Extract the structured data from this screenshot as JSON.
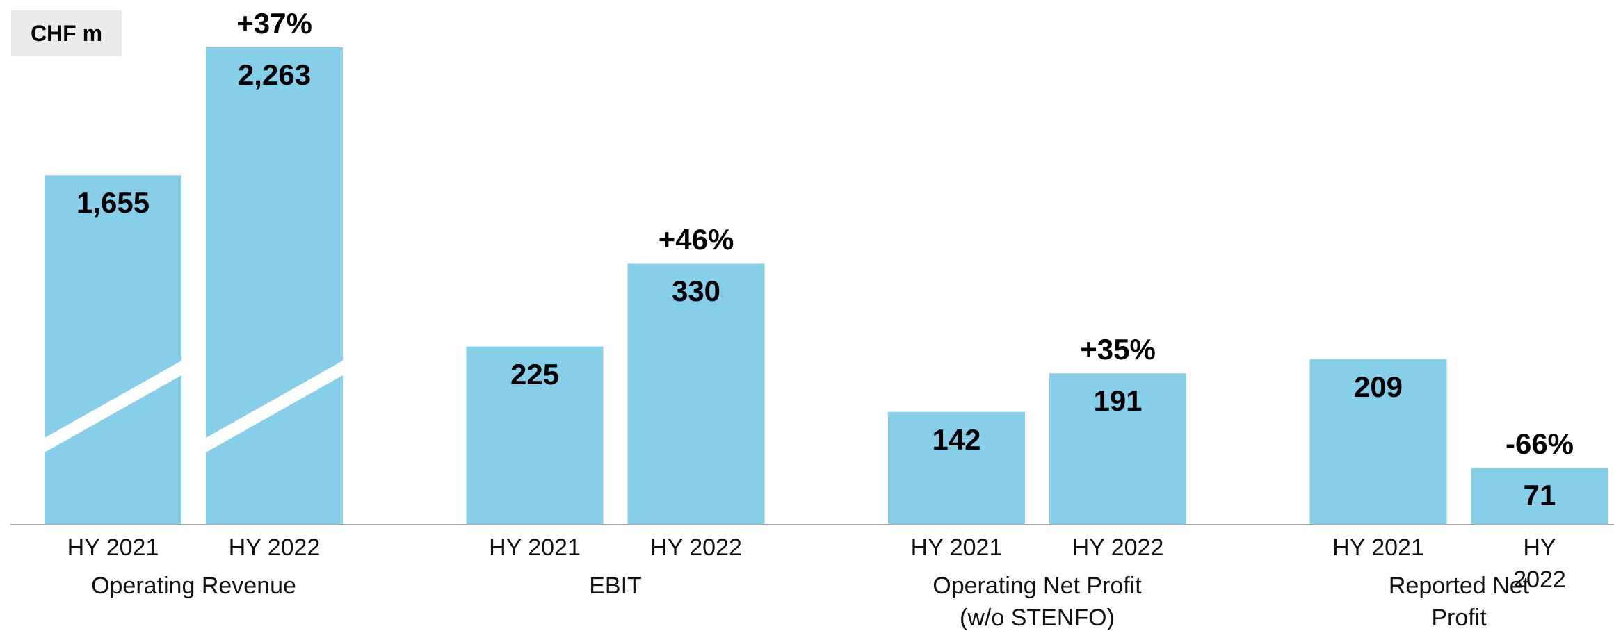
{
  "chart_data": {
    "type": "bar",
    "unit_label": "CHF m",
    "categories": [
      "Operating Revenue",
      "EBIT",
      "Operating Net Profit\n(w/o STENFO)",
      "Reported Net Profit"
    ],
    "series": [
      {
        "name": "HY 2021",
        "color": "#87cee8",
        "values": [
          1655,
          225,
          142,
          209
        ],
        "value_labels": [
          "1,655",
          "225",
          "142",
          "209"
        ]
      },
      {
        "name": "HY 2022",
        "color": "#87cee8",
        "values": [
          2263,
          330,
          191,
          71
        ],
        "value_labels": [
          "2,263",
          "330",
          "191",
          "71"
        ]
      }
    ],
    "changes": [
      "+37%",
      "+46%",
      "+35%",
      "-66%"
    ],
    "axis_break": [
      true,
      false,
      false,
      false
    ]
  }
}
